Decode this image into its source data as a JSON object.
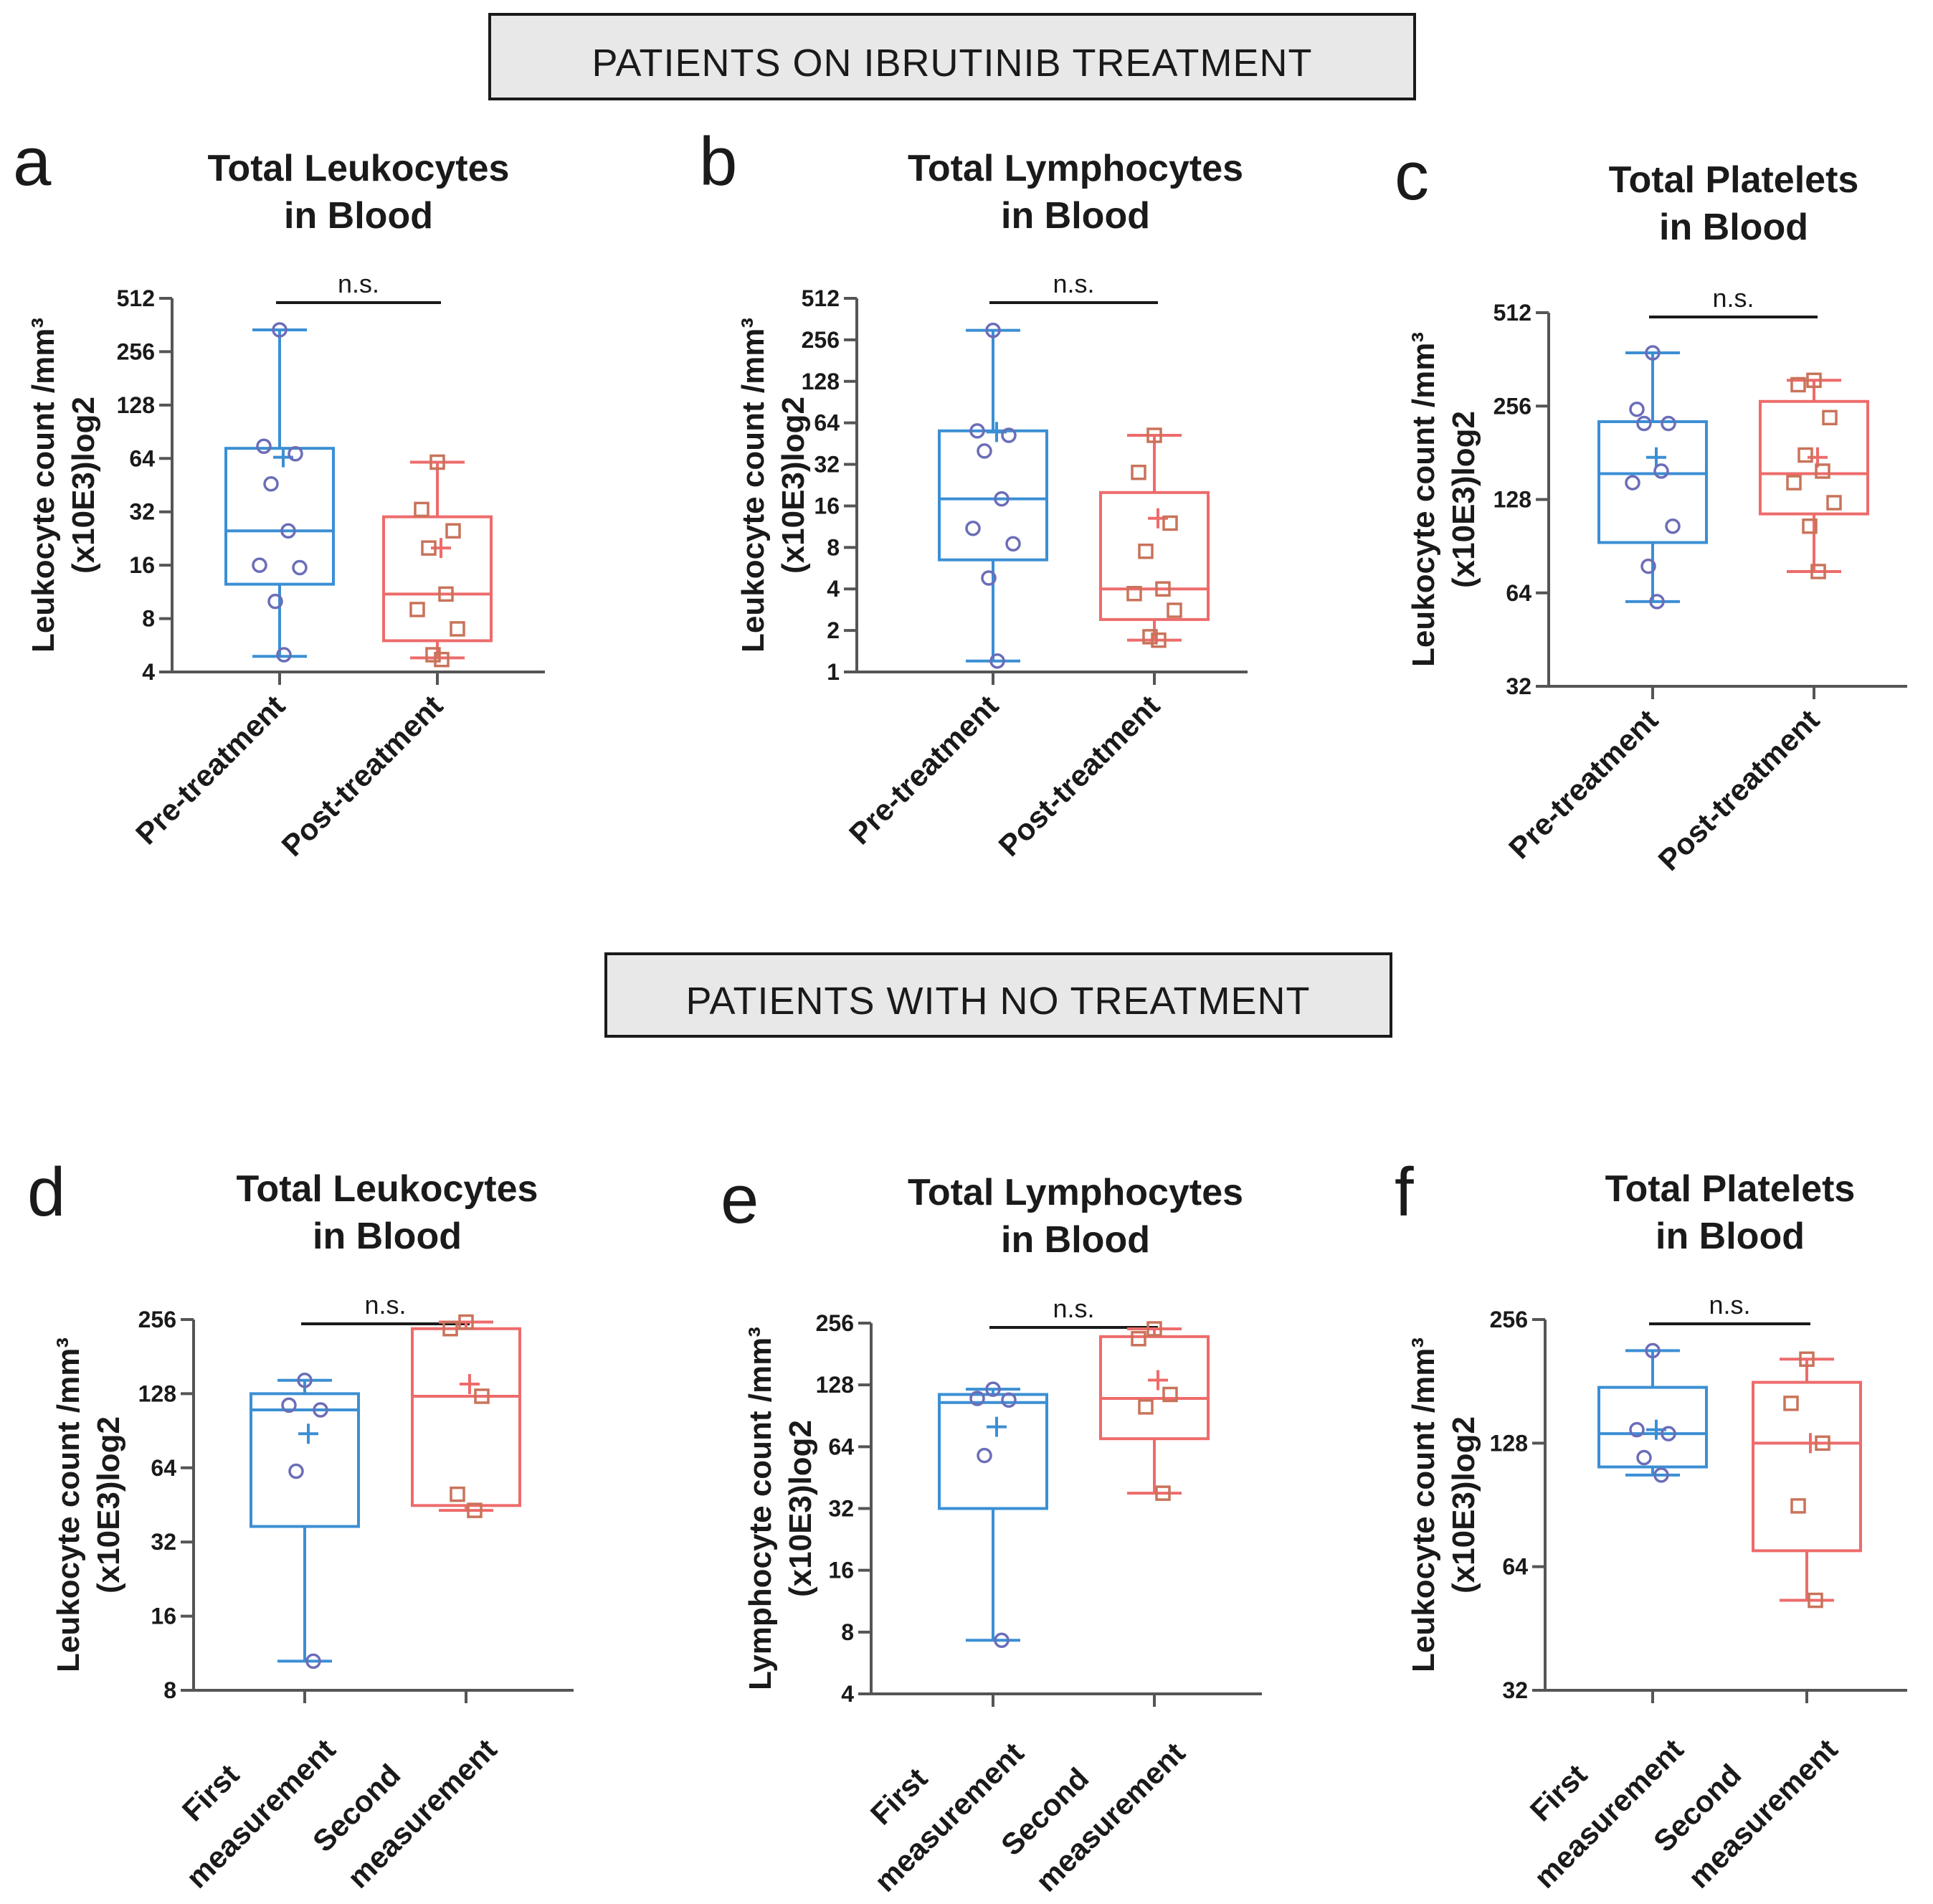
{
  "banners": [
    {
      "id": "ibrutinib",
      "text": "PATIENTS ON IBRUTINIB TREATMENT"
    },
    {
      "id": "no-treatment",
      "text": "PATIENTS WITH NO TREATMENT"
    }
  ],
  "colors": {
    "group1": "#3b8fd4",
    "group2": "#ee6b6b",
    "points1": "#6b6db8",
    "points2": "#c9735a",
    "axis": "#555555",
    "text": "#1a1a1a",
    "banner_bg": "#e8e8e8"
  },
  "chart_data": [
    {
      "letter": "a",
      "type": "box",
      "scale": "log2",
      "title": [
        "Total Leukocytes",
        "in Blood"
      ],
      "ylabel": [
        "Leukocyte count /mm³",
        "(x10E3)log2"
      ],
      "ylim": [
        4,
        512
      ],
      "yticks": [
        "4",
        "8",
        "16",
        "32",
        "64",
        "128",
        "256",
        "512"
      ],
      "categories": [
        [
          "Pre-treatment"
        ],
        [
          "Post-treatment"
        ]
      ],
      "significance": "n.s.",
      "boxes": [
        {
          "min": 4.9,
          "q1": 12.5,
          "median": 25,
          "q3": 73,
          "max": 340,
          "mean": 65,
          "points": [
            340,
            75,
            68,
            46,
            25,
            16,
            15.5,
            10,
            5
          ]
        },
        {
          "min": 4.8,
          "q1": 6,
          "median": 11,
          "q3": 30,
          "max": 61,
          "mean": 20,
          "points": [
            61,
            33,
            25,
            20,
            11,
            9,
            7,
            5,
            4.7
          ]
        }
      ]
    },
    {
      "letter": "b",
      "type": "box",
      "scale": "log2",
      "title": [
        "Total Lymphocytes",
        "in Blood"
      ],
      "ylabel": [
        "Leukocyte count /mm³",
        "(x10E3)log2"
      ],
      "ylim": [
        1,
        512
      ],
      "yticks": [
        "1",
        "2",
        "4",
        "8",
        "16",
        "32",
        "64",
        "128",
        "256",
        "512"
      ],
      "categories": [
        [
          "Pre-treatment"
        ],
        [
          "Post-treatment"
        ]
      ],
      "significance": "n.s.",
      "boxes": [
        {
          "min": 1.2,
          "q1": 6.5,
          "median": 18,
          "q3": 56,
          "max": 300,
          "mean": 55,
          "points": [
            300,
            56,
            52,
            40,
            18,
            11,
            8.5,
            4.8,
            1.2
          ]
        },
        {
          "min": 1.7,
          "q1": 2.4,
          "median": 4,
          "q3": 20,
          "max": 52,
          "mean": 13,
          "points": [
            52,
            28,
            12,
            7.5,
            4,
            3.7,
            2.8,
            1.8,
            1.7
          ]
        }
      ]
    },
    {
      "letter": "c",
      "type": "box",
      "scale": "log2",
      "title": [
        "Total Platelets",
        "in Blood"
      ],
      "ylabel": [
        "Leukocyte count /mm³",
        "(x10E3)log2"
      ],
      "ylim": [
        32,
        512
      ],
      "yticks": [
        "32",
        "64",
        "128",
        "256",
        "512"
      ],
      "categories": [
        [
          "Pre-treatment"
        ],
        [
          "Post-treatment"
        ]
      ],
      "significance": "n.s.",
      "boxes": [
        {
          "min": 60,
          "q1": 93,
          "median": 155,
          "q3": 228,
          "max": 380,
          "mean": 175,
          "points": [
            380,
            250,
            225,
            225,
            158,
            145,
            105,
            78,
            60
          ]
        },
        {
          "min": 75,
          "q1": 115,
          "median": 155,
          "q3": 265,
          "max": 310,
          "mean": 175,
          "points": [
            310,
            300,
            235,
            178,
            158,
            145,
            125,
            105,
            75
          ]
        }
      ]
    },
    {
      "letter": "d",
      "type": "box",
      "scale": "log2",
      "title": [
        "Total Leukocytes",
        "in Blood"
      ],
      "ylabel": [
        "Leukocyte count /mm³",
        "(x10E3)log2"
      ],
      "ylim": [
        8,
        256
      ],
      "yticks": [
        "8",
        "16",
        "32",
        "64",
        "128",
        "256"
      ],
      "categories": [
        [
          "First",
          "measurement"
        ],
        [
          "Second",
          "measurement"
        ]
      ],
      "significance": "n.s.",
      "boxes": [
        {
          "min": 10.5,
          "q1": 37,
          "median": 110,
          "q3": 128,
          "max": 145,
          "mean": 88,
          "points": [
            145,
            115,
            110,
            62,
            10.5
          ]
        },
        {
          "min": 43,
          "q1": 45,
          "median": 125,
          "q3": 235,
          "max": 250,
          "mean": 140,
          "points": [
            250,
            235,
            125,
            50,
            43
          ]
        }
      ]
    },
    {
      "letter": "e",
      "type": "box",
      "scale": "log2",
      "title": [
        "Total Lymphocytes",
        "in Blood"
      ],
      "ylabel": [
        "Lymphocyte count /mm³",
        "(x10E3)log2"
      ],
      "ylim": [
        4,
        256
      ],
      "yticks": [
        "4",
        "8",
        "16",
        "32",
        "64",
        "128",
        "256"
      ],
      "categories": [
        [
          "First",
          "measurement"
        ],
        [
          "Second",
          "measurement"
        ]
      ],
      "significance": "n.s.",
      "boxes": [
        {
          "min": 7.3,
          "q1": 32,
          "median": 105,
          "q3": 115,
          "max": 122,
          "mean": 80,
          "points": [
            122,
            110,
            108,
            58,
            7.3
          ]
        },
        {
          "min": 38,
          "q1": 70,
          "median": 110,
          "q3": 220,
          "max": 240,
          "mean": 135,
          "points": [
            240,
            215,
            115,
            100,
            38
          ]
        }
      ]
    },
    {
      "letter": "f",
      "type": "box",
      "scale": "log2",
      "title": [
        "Total Platelets",
        "in Blood"
      ],
      "ylabel": [
        "Leukocyte count /mm³",
        "(x10E3)log2"
      ],
      "ylim": [
        32,
        256
      ],
      "yticks": [
        "32",
        "64",
        "128",
        "256"
      ],
      "categories": [
        [
          "First",
          "measurement"
        ],
        [
          "Second",
          "measurement"
        ]
      ],
      "significance": "n.s.",
      "boxes": [
        {
          "min": 107,
          "q1": 112,
          "median": 135,
          "q3": 175,
          "max": 215,
          "mean": 138,
          "points": [
            215,
            138,
            135,
            118,
            107
          ]
        },
        {
          "min": 53,
          "q1": 70,
          "median": 128,
          "q3": 180,
          "max": 205,
          "mean": 128,
          "points": [
            205,
            160,
            128,
            90,
            53
          ]
        }
      ]
    }
  ]
}
